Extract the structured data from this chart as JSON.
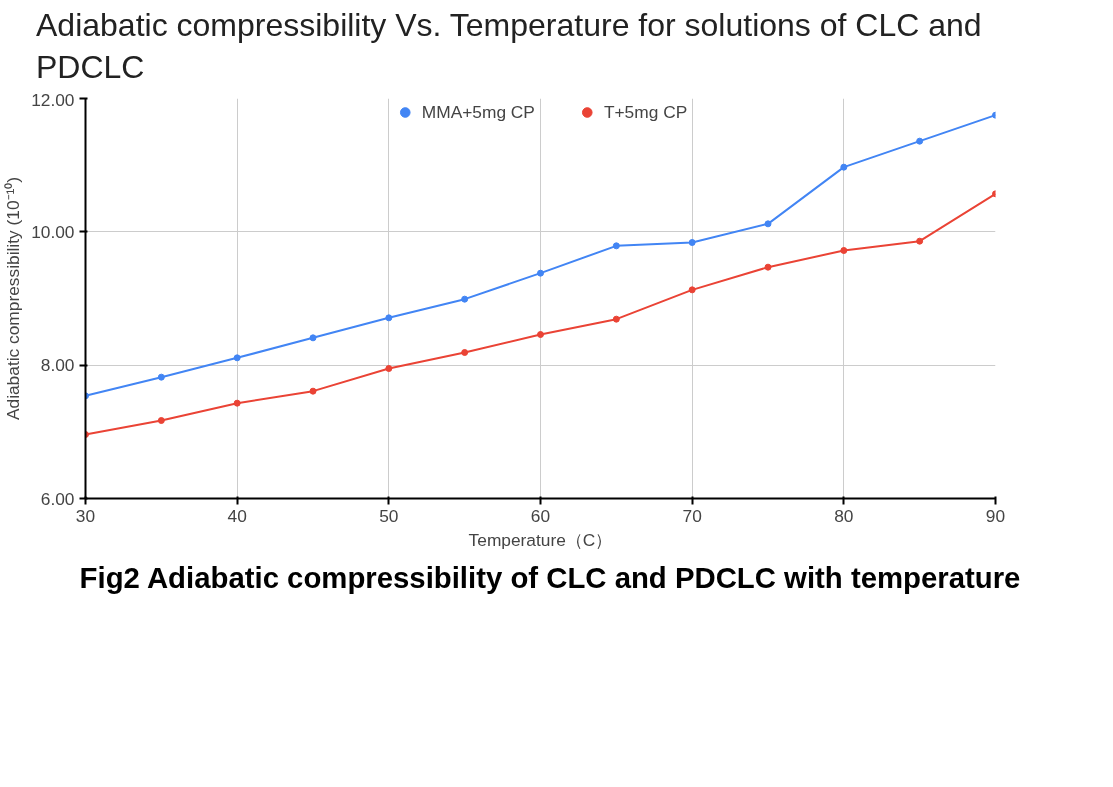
{
  "chart_data": {
    "type": "line",
    "title": "Adiabatic compressibility Vs. Temperature for solutions of CLC and PDCLC",
    "xlabel": "Temperature（C）",
    "ylabel": "Adiabatic compressibility (10⁻¹⁰)",
    "x": [
      30,
      35,
      40,
      45,
      50,
      55,
      60,
      65,
      70,
      75,
      80,
      85,
      90
    ],
    "series": [
      {
        "name": "MMA+5mg CP",
        "color": "#4285f4",
        "values": [
          7.54,
          7.82,
          8.11,
          8.41,
          8.71,
          8.99,
          9.38,
          9.79,
          9.84,
          10.12,
          10.97,
          11.36,
          11.75
        ]
      },
      {
        "name": "T+5mg CP",
        "color": "#ea4335",
        "values": [
          6.96,
          7.17,
          7.43,
          7.61,
          7.95,
          8.19,
          8.46,
          8.69,
          9.13,
          9.47,
          9.72,
          9.86,
          10.57
        ]
      }
    ],
    "xlim": [
      30,
      90
    ],
    "xticks": [
      30,
      40,
      50,
      60,
      70,
      80,
      90
    ],
    "ylim": [
      6,
      12
    ],
    "yticks": [
      {
        "value": 6,
        "label": "6.00"
      },
      {
        "value": 8,
        "label": "8.00"
      },
      {
        "value": 10,
        "label": "10.00"
      },
      {
        "value": 12,
        "label": "12.00"
      }
    ],
    "grid": true,
    "legend": "top",
    "marker": "circle",
    "line_style": "solid",
    "annotations": [
      "Fig2 Adiabatic compressibility of CLC and PDCLC with temperature"
    ]
  }
}
